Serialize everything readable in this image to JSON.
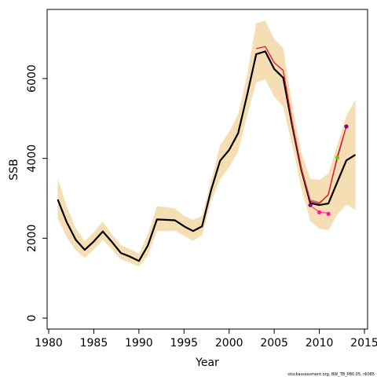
{
  "chart_data": {
    "type": "line",
    "xlabel": "Year",
    "ylabel": "SSB",
    "xlim": [
      1980.3,
      1985.0,
      2015.2
    ],
    "ylim": [
      -300,
      7700
    ],
    "x_ticks": [
      1980,
      1985,
      1990,
      1995,
      2000,
      2005,
      2010,
      2015
    ],
    "y_ticks": [
      0,
      2000,
      4000,
      6000
    ],
    "credit": "stockassessment.org, BW_TB_P80.05, r6085",
    "colors": {
      "band": "#f5deb3",
      "main_line": "#000000",
      "retro_1": "#e8132f",
      "retro_2": "#7f7f7f",
      "retro_3": "#ff1493",
      "retro_4": "#66cd00",
      "retro_5": "#8b008b"
    },
    "band": {
      "x": [
        1981,
        1982,
        1983,
        1984,
        1985,
        1986,
        1987,
        1988,
        1989,
        1990,
        1991,
        1992,
        1993,
        1994,
        1995,
        1996,
        1997,
        1998,
        1999,
        2000,
        2001,
        2002,
        2003,
        2004,
        2005,
        2006,
        2007,
        2008,
        2009,
        2010,
        2011,
        2012,
        2013,
        2014
      ],
      "upper": [
        3500,
        2800,
        2250,
        1920,
        2150,
        2420,
        2100,
        1830,
        1730,
        1610,
        2100,
        2800,
        2780,
        2740,
        2560,
        2460,
        2560,
        3430,
        4330,
        4660,
        5100,
        6090,
        7380,
        7450,
        6990,
        6760,
        5330,
        4150,
        3490,
        3460,
        3620,
        4340,
        5070,
        5470
      ],
      "lower": [
        2500,
        2020,
        1700,
        1510,
        1720,
        1960,
        1720,
        1470,
        1390,
        1290,
        1570,
        2180,
        2180,
        2190,
        2060,
        1940,
        2080,
        2920,
        3480,
        3770,
        4180,
        5080,
        5900,
        5980,
        5550,
        5290,
        4330,
        3260,
        2430,
        2240,
        2200,
        2600,
        2840,
        2710
      ]
    },
    "series": [
      {
        "role": "estimate",
        "x": [
          1981,
          1982,
          1983,
          1984,
          1985,
          1986,
          1987,
          1988,
          1989,
          1990,
          1991,
          1992,
          1993,
          1994,
          1995,
          1996,
          1997,
          1998,
          1999,
          2000,
          2001,
          2002,
          2003,
          2004,
          2005,
          2006,
          2007,
          2008,
          2009,
          2010,
          2011,
          2012,
          2013,
          2014
        ],
        "y": [
          2970,
          2400,
          1960,
          1710,
          1920,
          2170,
          1910,
          1630,
          1540,
          1430,
          1820,
          2470,
          2460,
          2450,
          2300,
          2180,
          2300,
          3200,
          3940,
          4210,
          4630,
          5590,
          6610,
          6680,
          6240,
          6020,
          4820,
          3720,
          2880,
          2830,
          2870,
          3410,
          3950,
          4090
        ]
      },
      {
        "role": "retro-1",
        "x": [
          2003,
          2004,
          2005,
          2006,
          2007,
          2008,
          2009,
          2010,
          2011,
          2012,
          2013
        ],
        "y": [
          6750,
          6800,
          6400,
          6200,
          4900,
          3750,
          2930,
          2870,
          3100,
          4050,
          4800
        ]
      },
      {
        "role": "retro-2",
        "x": [
          2007,
          2008,
          2009,
          2010,
          2011
        ],
        "y": [
          4850,
          3760,
          2960,
          2900,
          3070
        ]
      },
      {
        "role": "retro-3",
        "x": [
          2007,
          2008,
          2009,
          2010,
          2011
        ],
        "y": [
          4830,
          3700,
          2820,
          2650,
          2630
        ]
      },
      {
        "role": "retro-4",
        "x": [
          2010,
          2011,
          2012
        ],
        "y": [
          2860,
          3080,
          4020
        ]
      },
      {
        "role": "retro-5",
        "x": [
          2011,
          2012,
          2013
        ],
        "y": [
          3120,
          4000,
          4800
        ]
      }
    ],
    "endpoints": [
      {
        "x": 2009,
        "y": 2830,
        "color": "#8b008b"
      },
      {
        "x": 2010,
        "y": 2650,
        "color": "#ff1493"
      },
      {
        "x": 2011,
        "y": 2610,
        "color": "#ff1493"
      },
      {
        "x": 2012,
        "y": 4020,
        "color": "#66cd00"
      },
      {
        "x": 2013,
        "y": 4800,
        "color": "#8b008b"
      }
    ]
  }
}
